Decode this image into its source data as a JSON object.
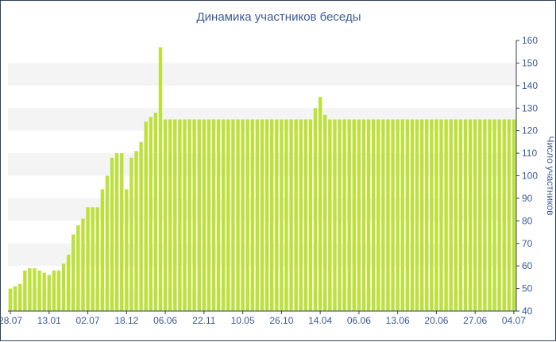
{
  "chart_data": {
    "type": "bar",
    "title": "Динамика участников беседы",
    "ylabel": "Число участников",
    "xlabel": "",
    "ylim": [
      40,
      160
    ],
    "yticks": [
      40,
      50,
      60,
      70,
      80,
      90,
      100,
      110,
      120,
      130,
      140,
      150,
      160
    ],
    "y_axis_side": "right",
    "grid": "alternating horizontal bands",
    "bar_color": "#bce23a",
    "band_color": "#f4f4f4",
    "text_color": "#3d5a96",
    "xtick_labels": [
      "28.07",
      "13.01",
      "02.07",
      "18.12",
      "06.06",
      "22.11",
      "10.05",
      "26.10",
      "14.04",
      "06.06",
      "13.06",
      "20.06",
      "27.06",
      "04.07"
    ],
    "xtick_bar_index": [
      0,
      8,
      16,
      24,
      32,
      40,
      48,
      56,
      64,
      72,
      80,
      88,
      96,
      104
    ],
    "values": [
      50,
      51,
      52,
      58,
      59,
      59,
      58,
      57,
      56,
      58,
      58,
      61,
      65,
      74,
      78,
      81,
      86,
      86,
      86,
      94,
      100,
      108,
      110,
      110,
      94,
      108,
      111,
      115,
      124,
      126,
      128,
      157,
      125,
      125,
      125,
      125,
      125,
      125,
      125,
      125,
      125,
      125,
      125,
      125,
      125,
      125,
      125,
      125,
      125,
      125,
      125,
      125,
      125,
      125,
      125,
      125,
      125,
      125,
      125,
      125,
      125,
      125,
      125,
      130,
      135,
      127,
      125,
      125,
      125,
      125,
      125,
      125,
      125,
      125,
      125,
      125,
      125,
      125,
      125,
      125,
      125,
      125,
      125,
      125,
      125,
      125,
      125,
      125,
      125,
      125,
      125,
      125,
      125,
      125,
      125,
      125,
      125,
      125,
      125,
      125,
      125,
      125,
      125,
      125,
      125
    ]
  }
}
